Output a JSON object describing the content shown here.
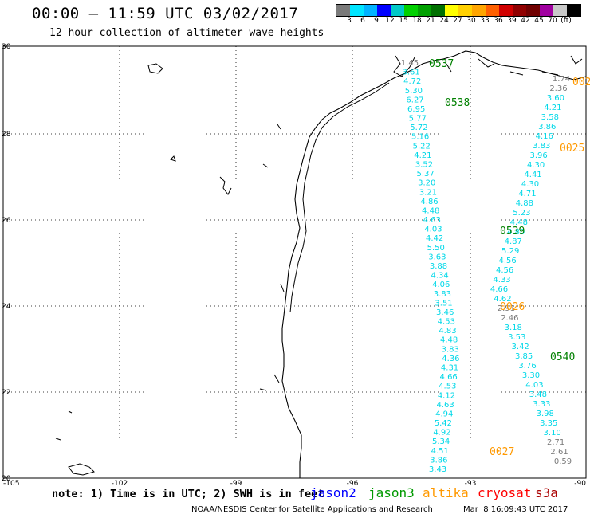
{
  "header": {
    "title": "00:00 – 11:59 UTC 03/02/2017",
    "subtitle": "12 hour collection of altimeter wave heights"
  },
  "color_scale": {
    "swatches": [
      "#7a7a7a",
      "#00e5ff",
      "#00b2ff",
      "#0000ff",
      "#00c8c8",
      "#00d000",
      "#00a000",
      "#007000",
      "#ffff00",
      "#ffd000",
      "#ffa500",
      "#ff6000",
      "#d00000",
      "#900000",
      "#700000",
      "#a000a0",
      "#c8c8c8",
      "#000000"
    ],
    "labels": [
      "3",
      "6",
      "9",
      "12",
      "15",
      "18",
      "21",
      "24",
      "27",
      "30",
      "33",
      "36",
      "39",
      "42",
      "45",
      "70",
      "(ft)"
    ]
  },
  "map": {
    "lat_labels": [
      "30",
      "28",
      "26",
      "24",
      "22",
      "20"
    ],
    "lon_labels": [
      "-105",
      "-102",
      "-99",
      "-96",
      "-93",
      "-90"
    ],
    "pass_labels": [
      {
        "text": "0537",
        "color": "#008000"
      },
      {
        "text": "0538",
        "color": "#008000"
      },
      {
        "text": "0539",
        "color": "#008000"
      },
      {
        "text": "0540",
        "color": "#008000"
      },
      {
        "text": "0025",
        "color": "#ff9900"
      },
      {
        "text": "0026",
        "color": "#ff9900"
      },
      {
        "text": "0027",
        "color": "#ff9900"
      },
      {
        "text": "002",
        "color": "#ff9900"
      }
    ],
    "tracks": [
      {
        "name": "west-track",
        "color": "#00d8e8",
        "values": [
          "1.45",
          "3.61",
          "4.72",
          "5.30",
          "6.27",
          "6.95",
          "5.77",
          "5.72",
          "5.16",
          "5.22",
          "4.21",
          "3.52",
          "5.37",
          "3.20",
          "3.21",
          "4.86",
          "4.48",
          "4.63",
          "4.03",
          "4.42",
          "5.50",
          "3.63",
          "3.88",
          "4.34",
          "4.06",
          "3.83",
          "3.51",
          "3.46",
          "4.53",
          "4.83",
          "4.48",
          "3.83",
          "4.36",
          "4.31",
          "4.66",
          "4.53",
          "4.12",
          "4.63",
          "4.94",
          "5.42",
          "4.92",
          "5.34",
          "4.51",
          "3.86",
          "3.43"
        ]
      },
      {
        "name": "east-track",
        "color": "#00d8e8",
        "values": [
          "1.74",
          "2.36",
          "3.60",
          "4.21",
          "3.58",
          "3.86",
          "4.16",
          "3.83",
          "3.96",
          "4.30",
          "4.41",
          "4.30",
          "4.71",
          "4.88",
          "5.23",
          "4.48",
          "4.80",
          "4.87",
          "5.29",
          "4.56",
          "4.56",
          "4.33",
          "4.66",
          "4.62",
          "2.91",
          "2.46",
          "3.18",
          "3.53",
          "3.42",
          "3.85",
          "3.76",
          "3.30",
          "4.03",
          "3.48",
          "3.33",
          "3.98",
          "3.35",
          "3.10",
          "2.71",
          "2.61",
          "0.59"
        ]
      }
    ]
  },
  "footer": {
    "note": "note: 1) Time is in UTC; 2) SWH is in feet",
    "legend": [
      {
        "name": "jason2",
        "color": "#0000ff"
      },
      {
        "name": "jason3",
        "color": "#009900"
      },
      {
        "name": "altika",
        "color": "#ff9900"
      },
      {
        "name": "cryosat",
        "color": "#ff0000"
      },
      {
        "name": "s3a",
        "color": "#aa0000"
      }
    ],
    "credit": "NOAA/NESDIS Center for Satellite Applications and Research",
    "timestamp": "Mar  8 16:09:43 UTC 2017"
  }
}
